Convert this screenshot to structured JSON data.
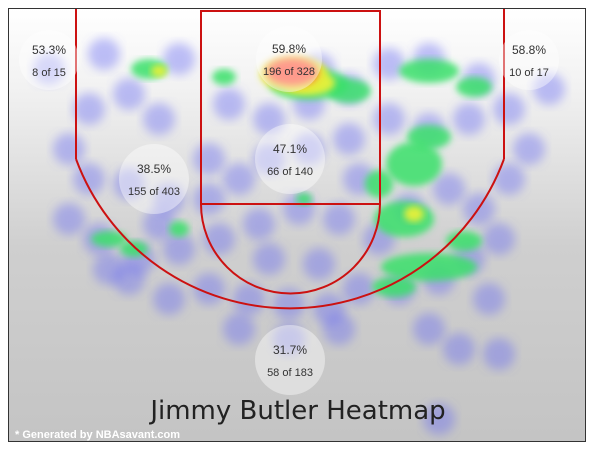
{
  "chart_data": {
    "type": "heatmap",
    "title": "Jimmy Butler Heatmap",
    "credit": "* Generated by NBAsavant.com",
    "zones": [
      {
        "name": "left-corner-three",
        "pct": "53.3%",
        "made_of": "8 of 15",
        "made": 8,
        "attempts": 15
      },
      {
        "name": "restricted-area",
        "pct": "59.8%",
        "made_of": "196 of 328",
        "made": 196,
        "attempts": 328
      },
      {
        "name": "right-corner-three",
        "pct": "58.8%",
        "made_of": "10 of 17",
        "made": 10,
        "attempts": 17
      },
      {
        "name": "paint-non-ra",
        "pct": "47.1%",
        "made_of": "66 of 140",
        "made": 66,
        "attempts": 140
      },
      {
        "name": "mid-range",
        "pct": "38.5%",
        "made_of": "155 of 403",
        "made": 155,
        "attempts": 403
      },
      {
        "name": "above-break-three",
        "pct": "31.7%",
        "made_of": "58 of 183",
        "made": 58,
        "attempts": 183
      }
    ],
    "colors": {
      "court_lines": "#cc1111",
      "heat_low": "#6a6cf2",
      "heat_mid": "#3ae06a",
      "heat_high": "#e6f03a",
      "heat_max": "#ff4a3a"
    }
  }
}
